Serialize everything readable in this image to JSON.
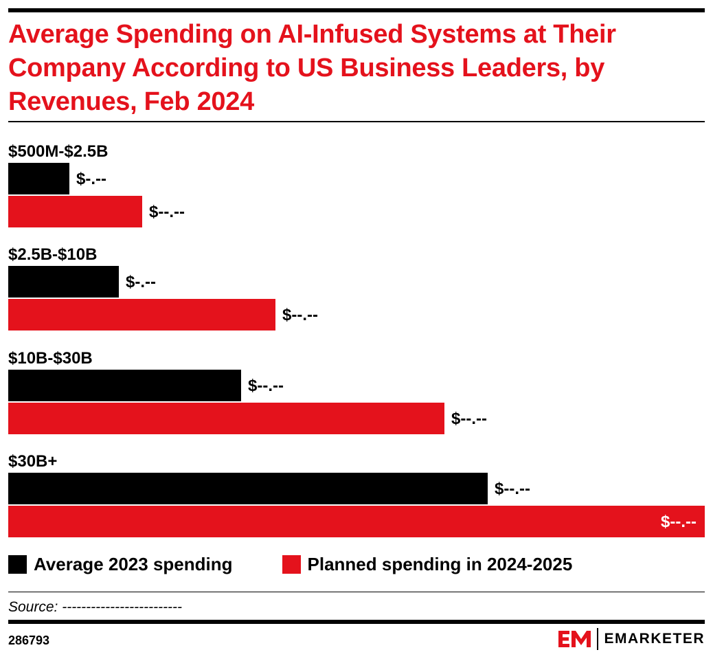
{
  "header": {
    "title": "Average Spending on AI-Infused Systems at Their Company According to US Business Leaders, by Revenues, Feb 2024"
  },
  "chart_data": {
    "type": "bar",
    "orientation": "horizontal",
    "categories": [
      "$500M-$2.5B",
      "$2.5B-$10B",
      "$10B-$30B",
      "$30B+"
    ],
    "series": [
      {
        "name": "Average 2023 spending",
        "color": "#000000",
        "values": [
          0.88,
          1.59,
          3.34,
          6.88
        ],
        "value_labels": [
          "$-.--",
          "$-.--",
          "$--.--",
          "$--.--"
        ]
      },
      {
        "name": "Planned spending in 2024-2025",
        "color": "#e4121c",
        "values": [
          1.92,
          3.84,
          6.26,
          10.0
        ],
        "value_labels": [
          "$--.--",
          "$--.--",
          "$--.--",
          "$--.--"
        ]
      }
    ],
    "xlim": [
      0,
      10
    ],
    "grid": false,
    "legend_position": "bottom"
  },
  "legend": {
    "items": [
      {
        "label": "Average 2023 spending",
        "color": "#000000"
      },
      {
        "label": "Planned spending in 2024-2025",
        "color": "#e4121c"
      }
    ]
  },
  "footer": {
    "source": "Source: -------------------------",
    "chart_id": "286793",
    "brand": "EMARKETER",
    "brand_logo_icon": "em-logo-icon"
  },
  "colors": {
    "accent": "#e4121c",
    "text": "#000000"
  }
}
